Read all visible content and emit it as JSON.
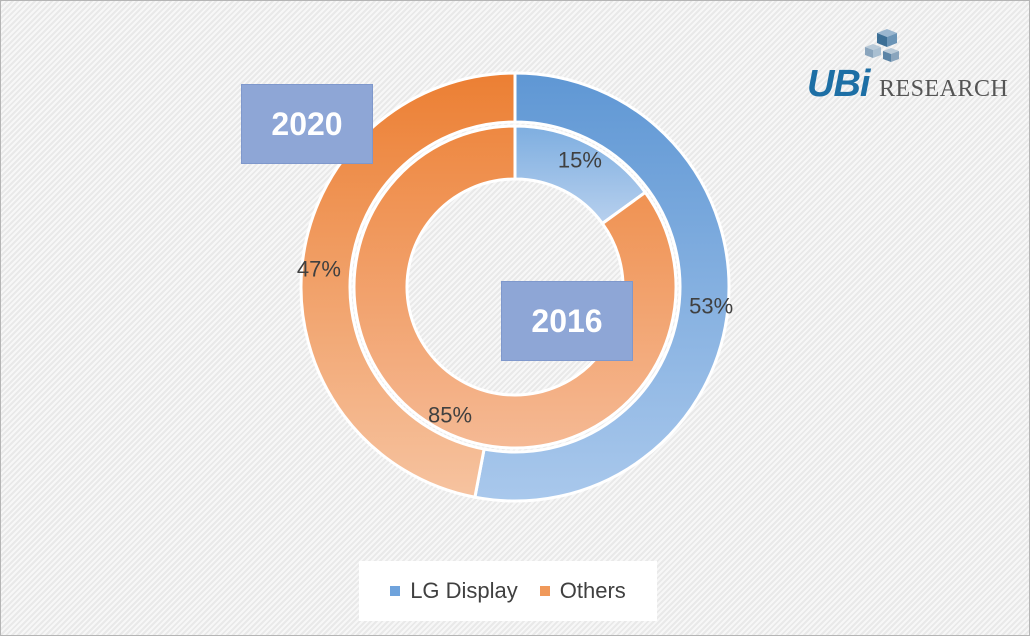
{
  "chart_data": {
    "type": "pie",
    "variant": "nested-doughnut",
    "categories": [
      "LG Display",
      "Others"
    ],
    "series": [
      {
        "name": "2020",
        "ring": "outer",
        "values": [
          53,
          47
        ],
        "labels": [
          "53%",
          "47%"
        ]
      },
      {
        "name": "2016",
        "ring": "inner",
        "values": [
          15,
          85
        ],
        "labels": [
          "15%",
          "85%"
        ]
      }
    ],
    "colors": [
      "#6fa3dc",
      "#f0995a"
    ],
    "legend": {
      "position": "bottom",
      "items": [
        "LG Display",
        "Others"
      ]
    },
    "title": ""
  },
  "annotations": {
    "outer_year": "2020",
    "inner_year": "2016"
  },
  "logo": {
    "brand": "UBi",
    "text": "RESEARCH"
  }
}
